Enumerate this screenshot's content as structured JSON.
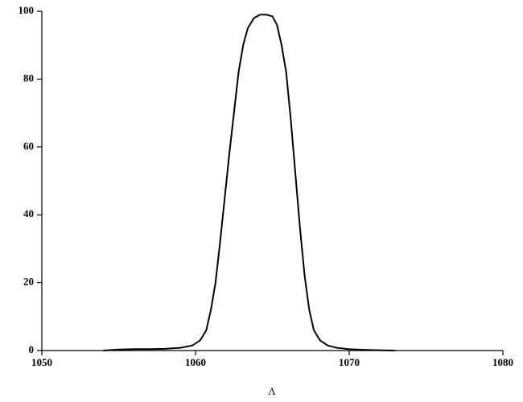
{
  "chart_data": {
    "type": "line",
    "x_label": "Λ",
    "series": [
      {
        "color": "#000000",
        "x": [
          1054,
          1055,
          1056,
          1057,
          1058,
          1059,
          1059.8,
          1060.3,
          1060.7,
          1061,
          1061.3,
          1061.6,
          1061.9,
          1062.2,
          1062.5,
          1062.8,
          1063.1,
          1063.4,
          1063.8,
          1064.2,
          1064.6,
          1065,
          1065.3,
          1065.6,
          1065.9,
          1066.2,
          1066.5,
          1066.8,
          1067.1,
          1067.4,
          1067.7,
          1068.1,
          1068.6,
          1069.2,
          1070,
          1071,
          1072,
          1073
        ],
        "values": [
          0,
          0.3,
          0.4,
          0.4,
          0.5,
          0.8,
          1.5,
          3,
          6,
          12,
          20,
          32,
          45,
          58,
          70,
          82,
          90,
          95,
          98,
          99,
          99,
          98.5,
          96,
          90,
          82,
          68,
          52,
          36,
          22,
          12,
          6,
          3,
          1.5,
          0.8,
          0.4,
          0.2,
          0.1,
          0
        ]
      }
    ],
    "xlim": [
      1050,
      1080
    ],
    "xticks": [
      1050,
      1060,
      1070,
      1080
    ],
    "ylim": [
      0,
      100
    ],
    "yticks": [
      0,
      20,
      40,
      60,
      80,
      100
    ]
  }
}
